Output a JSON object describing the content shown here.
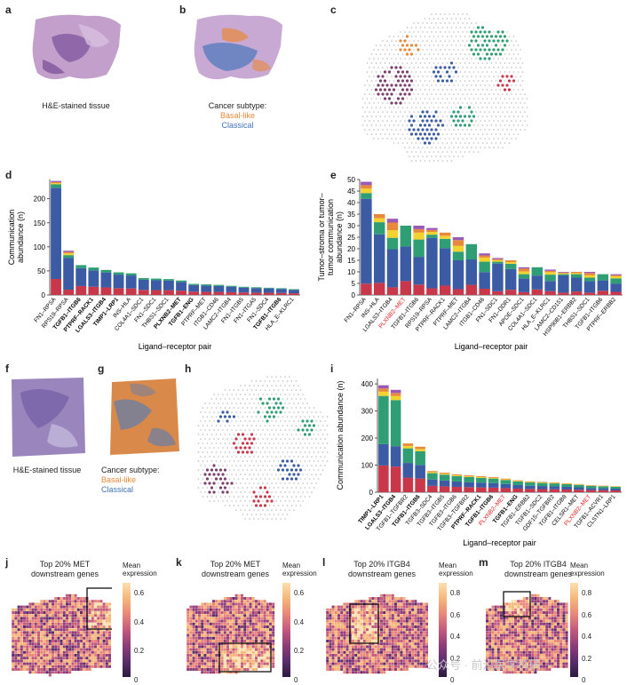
{
  "panels": {
    "a": {
      "label": "a",
      "caption": "H&E-stained tissue"
    },
    "b": {
      "label": "b",
      "caption": "Cancer subtype:",
      "legend": [
        {
          "name": "Basal-like",
          "color": "#e8883a"
        },
        {
          "name": "Classical",
          "color": "#3f73b8"
        }
      ]
    },
    "c": {
      "label": "c"
    },
    "d": {
      "label": "d"
    },
    "e": {
      "label": "e"
    },
    "f": {
      "label": "f",
      "caption": "H&E-stained tissue"
    },
    "g": {
      "label": "g",
      "caption": "Cancer subtype:",
      "legend": [
        {
          "name": "Basal-like",
          "color": "#e8883a"
        },
        {
          "name": "Classical",
          "color": "#3f73b8"
        }
      ]
    },
    "h": {
      "label": "h"
    },
    "i": {
      "label": "i"
    },
    "j": {
      "label": "j",
      "title_l1": "Top 20% MET",
      "title_l2": "downstream genes",
      "cbar_title_l1": "Mean",
      "cbar_title_l2": "expression",
      "cbar_ticks": [
        "0.6",
        "0.4",
        "0.2",
        "0"
      ]
    },
    "k": {
      "label": "k",
      "title_l1": "Top 20% MET",
      "title_l2": "downstream genes",
      "cbar_title_l1": "Mean",
      "cbar_title_l2": "expression",
      "cbar_ticks": [
        "0.6",
        "0.4",
        "0.2",
        "0"
      ]
    },
    "l": {
      "label": "l",
      "title_l1": "Top 20% ITGB4",
      "title_l2": "downstream genes",
      "cbar_title_l1": "Mean",
      "cbar_title_l2": "expression",
      "cbar_ticks": [
        "0.8",
        "0.6",
        "0.4",
        "0.2",
        "0"
      ]
    },
    "m": {
      "label": "m",
      "title_l1": "Top 20% ITGB4",
      "title_l2": "downstream genes",
      "cbar_title_l1": "Mean",
      "cbar_title_l2": "expression",
      "cbar_ticks": [
        "0.8",
        "0.6",
        "0.4",
        "0.2",
        "0"
      ]
    }
  },
  "colors": {
    "red": "#e02020",
    "bar_base": "#3b5ba5",
    "bar_top": "#e85a4a",
    "stack": [
      "#c8384a",
      "#3b5ba5",
      "#2f9e74",
      "#f2d22e",
      "#e8883a",
      "#9b59b6",
      "#e377c2"
    ]
  },
  "watermark": "公众号 · 前沿医学科研",
  "chart_data": [
    {
      "panel": "d",
      "type": "bar",
      "ylabel_l1": "Communication",
      "ylabel_l2": "abundance (n)",
      "xlabel": "Ligand–receptor pair",
      "ylim": [
        0,
        240
      ],
      "yticks": [
        0,
        50,
        100,
        150,
        200
      ],
      "categories": [
        "FN1–RPSA",
        "RPS19–RPSA",
        "TGFB1–ITGB6",
        "PTPRF–RACK1",
        "LGALS3–ITGB4",
        "TIMP1–LRP1",
        "INS–HLA",
        "COL4A1–SDC1",
        "FN1–SDC1",
        "THBS1–SDC1",
        "PLXNB2–MET",
        "TGFB1–ENG",
        "PTPRF–MET",
        "ITGB1–CD46",
        "LAMC2–ITGB4",
        "FN1–ITGB5",
        "FN1–ITGA5",
        "FN1–SDC4",
        "TGFB1–ITGB6",
        "HLA_E–KLRC1"
      ],
      "bold": [
        false,
        false,
        true,
        true,
        true,
        true,
        false,
        false,
        false,
        false,
        true,
        true,
        false,
        false,
        false,
        false,
        false,
        false,
        true,
        false
      ],
      "values": [
        237,
        92,
        62,
        57,
        52,
        47,
        45,
        35,
        34,
        33,
        30,
        23,
        22,
        21,
        19,
        17,
        16,
        15,
        14,
        12
      ]
    },
    {
      "panel": "e",
      "type": "bar",
      "ylabel_l1": "Tumor–stroma or tumor–",
      "ylabel_l2": "tumor communication",
      "ylabel_l3": "abundance (n)",
      "xlabel": "Ligand–receptor pair",
      "ylim": [
        0,
        50
      ],
      "yticks": [
        0,
        5,
        10,
        15,
        20,
        25,
        30,
        35,
        40,
        45,
        50
      ],
      "categories": [
        "FN1–RPSA",
        "INS–HLA",
        "LGALS3–ITGB4",
        "PLXNB2–MET",
        "TGFB1–ITGB6",
        "RPS19–RPSA",
        "PTPRF–RACK1",
        "PTPRF–MET",
        "LAMC2–ITGB4",
        "ITGB1–CD46",
        "FN1–SDC1",
        "FN1–DDR1",
        "APOE–SDC1",
        "COL4A1–SDC1",
        "HLA_E–KLRC1",
        "LAMC2–CD151",
        "HSP90B1–ERBB2",
        "THBS1–SDC1",
        "TGFB1–ITGB6",
        "PTPRF–ERBB2"
      ],
      "red": [
        false,
        false,
        false,
        true,
        false,
        false,
        false,
        false,
        false,
        false,
        false,
        false,
        false,
        false,
        false,
        false,
        false,
        false,
        false,
        false
      ],
      "values": [
        49,
        35,
        33,
        30,
        30,
        29,
        27,
        25,
        22,
        18,
        16,
        15,
        12,
        12,
        11,
        10,
        10,
        10,
        9,
        9
      ]
    },
    {
      "panel": "i",
      "type": "bar",
      "ylabel": "Communication abundance (n)",
      "xlabel": "Ligand–receptor pair",
      "ylim": [
        0,
        420
      ],
      "yticks": [
        0,
        100,
        200,
        300,
        400
      ],
      "categories": [
        "TIMP1–LRP1",
        "LGALS3–ITGB4",
        "TGFB1–TGFBR2",
        "TGFB1–ITGB6",
        "TGFB3–SDC4",
        "TGFB3–ITGB5",
        "TGFB3–ITGB6",
        "TGFB3–TGFBR2",
        "PTPRF–RACK1",
        "TGFB1–ITGB6",
        "PLXNB2–MET",
        "TGFB1–ENG",
        "TGFB1–ERBB2",
        "TGFB1–SDC2",
        "GDF15–TGFBR2",
        "TGFB1–ITGB8",
        "CELSR1–MET",
        "PLXNB2–MET",
        "TGFB1–ACVR1",
        "CLSTN1–LRP1"
      ],
      "bold": [
        true,
        true,
        false,
        true,
        false,
        false,
        false,
        false,
        true,
        true,
        false,
        true,
        false,
        false,
        false,
        false,
        false,
        false,
        false,
        false
      ],
      "red": [
        false,
        false,
        false,
        false,
        false,
        false,
        false,
        false,
        false,
        false,
        true,
        false,
        false,
        false,
        false,
        false,
        false,
        true,
        false,
        false
      ],
      "values": [
        395,
        378,
        180,
        168,
        78,
        72,
        66,
        62,
        59,
        56,
        50,
        44,
        40,
        38,
        36,
        33,
        30,
        26,
        24,
        22
      ]
    }
  ]
}
